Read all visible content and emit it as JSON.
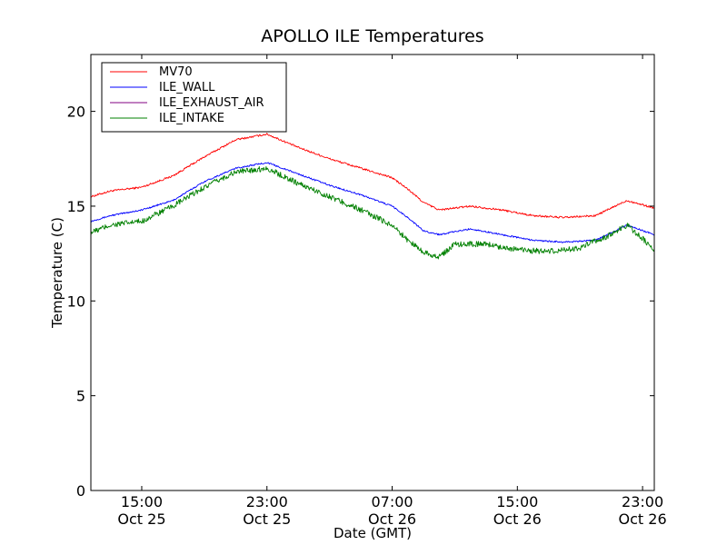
{
  "chart_data": {
    "type": "line",
    "title": "APOLLO ILE Temperatures",
    "xlabel": "Date (GMT)",
    "ylabel": "Temperature (C)",
    "x_unit": "datetime (GMT)",
    "xlim": [
      "2000-10-25 11:45",
      "2000-10-26 23:45"
    ],
    "ylim": [
      0,
      23
    ],
    "yticks": [
      0,
      5,
      10,
      15,
      20
    ],
    "xticks": [
      {
        "time": "2000-10-25 15:00",
        "label_line1": "15:00",
        "label_line2": "Oct 25"
      },
      {
        "time": "2000-10-25 23:00",
        "label_line1": "23:00",
        "label_line2": "Oct 25"
      },
      {
        "time": "2000-10-26 07:00",
        "label_line1": "07:00",
        "label_line2": "Oct 26"
      },
      {
        "time": "2000-10-26 15:00",
        "label_line1": "15:00",
        "label_line2": "Oct 26"
      },
      {
        "time": "2000-10-26 23:00",
        "label_line1": "23:00",
        "label_line2": "Oct 26"
      }
    ],
    "grid": false,
    "legend_position": "top-left",
    "series": [
      {
        "name": "MV70",
        "color": "#ff0000",
        "noise": 0.05,
        "points": [
          [
            "2000-10-25 11:45",
            15.5
          ],
          [
            "2000-10-25 13:00",
            15.8
          ],
          [
            "2000-10-25 15:00",
            16.0
          ],
          [
            "2000-10-25 17:00",
            16.6
          ],
          [
            "2000-10-25 19:00",
            17.6
          ],
          [
            "2000-10-25 21:00",
            18.5
          ],
          [
            "2000-10-25 23:00",
            18.8
          ],
          [
            "2000-10-26 01:00",
            18.1
          ],
          [
            "2000-10-26 03:00",
            17.5
          ],
          [
            "2000-10-26 05:00",
            17.0
          ],
          [
            "2000-10-26 07:00",
            16.5
          ],
          [
            "2000-10-26 08:00",
            15.9
          ],
          [
            "2000-10-26 09:00",
            15.2
          ],
          [
            "2000-10-26 10:00",
            14.8
          ],
          [
            "2000-10-26 12:00",
            15.0
          ],
          [
            "2000-10-26 14:00",
            14.8
          ],
          [
            "2000-10-26 16:00",
            14.5
          ],
          [
            "2000-10-26 18:00",
            14.4
          ],
          [
            "2000-10-26 20:00",
            14.5
          ],
          [
            "2000-10-26 22:00",
            15.3
          ],
          [
            "2000-10-26 23:45",
            14.9
          ]
        ]
      },
      {
        "name": "ILE_WALL",
        "color": "#0000ff",
        "noise": 0.04,
        "points": [
          [
            "2000-10-25 11:45",
            14.2
          ],
          [
            "2000-10-25 13:00",
            14.5
          ],
          [
            "2000-10-25 15:00",
            14.8
          ],
          [
            "2000-10-25 17:00",
            15.3
          ],
          [
            "2000-10-25 19:00",
            16.3
          ],
          [
            "2000-10-25 21:00",
            17.0
          ],
          [
            "2000-10-25 23:00",
            17.3
          ],
          [
            "2000-10-26 01:00",
            16.7
          ],
          [
            "2000-10-26 03:00",
            16.1
          ],
          [
            "2000-10-26 05:00",
            15.6
          ],
          [
            "2000-10-26 07:00",
            15.0
          ],
          [
            "2000-10-26 08:00",
            14.4
          ],
          [
            "2000-10-26 09:00",
            13.7
          ],
          [
            "2000-10-26 10:00",
            13.5
          ],
          [
            "2000-10-26 12:00",
            13.8
          ],
          [
            "2000-10-26 14:00",
            13.5
          ],
          [
            "2000-10-26 16:00",
            13.2
          ],
          [
            "2000-10-26 18:00",
            13.1
          ],
          [
            "2000-10-26 20:00",
            13.2
          ],
          [
            "2000-10-26 22:00",
            14.0
          ],
          [
            "2000-10-26 23:45",
            13.5
          ]
        ]
      },
      {
        "name": "ILE_EXHAUST_AIR",
        "color": "#800080",
        "noise": 0.0,
        "points": []
      },
      {
        "name": "ILE_INTAKE",
        "color": "#008000",
        "noise": 0.15,
        "points": [
          [
            "2000-10-25 11:45",
            13.6
          ],
          [
            "2000-10-25 13:00",
            14.0
          ],
          [
            "2000-10-25 15:00",
            14.2
          ],
          [
            "2000-10-25 17:00",
            15.0
          ],
          [
            "2000-10-25 19:00",
            16.0
          ],
          [
            "2000-10-25 21:00",
            16.8
          ],
          [
            "2000-10-25 23:00",
            17.0
          ],
          [
            "2000-10-26 01:00",
            16.2
          ],
          [
            "2000-10-26 03:00",
            15.5
          ],
          [
            "2000-10-26 05:00",
            14.8
          ],
          [
            "2000-10-26 07:00",
            14.0
          ],
          [
            "2000-10-26 08:00",
            13.2
          ],
          [
            "2000-10-26 09:00",
            12.6
          ],
          [
            "2000-10-26 10:00",
            12.3
          ],
          [
            "2000-10-26 11:00",
            13.0
          ],
          [
            "2000-10-26 13:00",
            13.0
          ],
          [
            "2000-10-26 15:00",
            12.7
          ],
          [
            "2000-10-26 17:00",
            12.6
          ],
          [
            "2000-10-26 19:00",
            12.8
          ],
          [
            "2000-10-26 21:00",
            13.5
          ],
          [
            "2000-10-26 22:00",
            14.0
          ],
          [
            "2000-10-26 23:00",
            13.3
          ],
          [
            "2000-10-26 23:45",
            12.6
          ]
        ]
      }
    ]
  }
}
